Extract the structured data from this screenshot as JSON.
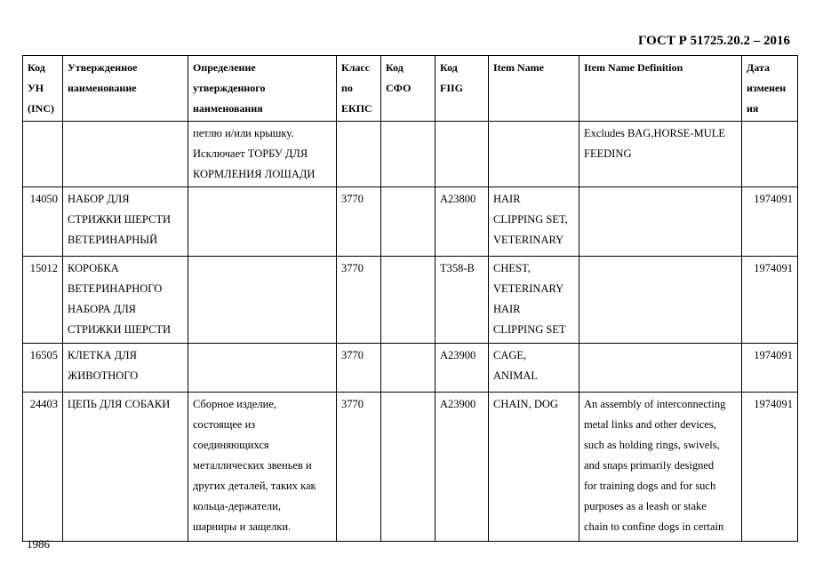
{
  "header": {
    "standard": "ГОСТ Р 51725.20.2 – 2016"
  },
  "table": {
    "columns": [
      "Код\nУН\n(INC)",
      "Утвержденное\nнаименование",
      "Определение\nутвержденного\nнаименования",
      "Класс\nпо\nЕКПС",
      "Код\nСФО",
      "Код\nFIIG",
      "Item Name",
      "Item Name Definition",
      "Дата\nизменен\nия"
    ],
    "rows": [
      [
        "",
        "",
        "петлю и/или крышку.\nИсключает ТОРБУ ДЛЯ\nКОРМЛЕНИЯ ЛОШАДИ",
        "",
        "",
        "",
        "",
        "Excludes BAG,HORSE-MULE\nFEEDING",
        ""
      ],
      [
        "14050",
        "НАБОР ДЛЯ\nСТРИЖКИ ШЕРСТИ\nВЕТЕРИНАРНЫЙ",
        "",
        "3770",
        "",
        "A23800",
        "HAIR\nCLIPPING SET,\nVETERINARY",
        "",
        "1974091"
      ],
      [
        "15012",
        "КОРОБКА\nВЕТЕРИНАРНОГО\nНАБОРА ДЛЯ\nСТРИЖКИ ШЕРСТИ",
        "",
        "3770",
        "",
        "T358-B",
        "CHEST,\nVETERINARY\nHAIR\nCLIPPING SET",
        "",
        "1974091"
      ],
      [
        "16505",
        "КЛЕТКА ДЛЯ\nЖИВОТНОГО",
        "",
        "3770",
        "",
        "A23900",
        "CAGE,\nANIMAL",
        "",
        "1974091"
      ],
      [
        "24403",
        "ЦЕПЬ ДЛЯ СОБАКИ",
        "Сборное изделие,\nсостоящее из\nсоединяющихся\nметаллических звеньев и\nдругих деталей, таких как\nкольца-держатели,\nшарниры и защелки.",
        "3770",
        "",
        "A23900",
        "CHAIN, DOG",
        "An assembly of interconnecting\nmetal links and other devices,\nsuch as holding rings, swivels,\nand snaps primarily designed\nfor training dogs and for such\npurposes as a leash or stake\nchain to confine dogs in certain",
        "1974091"
      ]
    ]
  },
  "footer": {
    "page_number": "1986"
  }
}
